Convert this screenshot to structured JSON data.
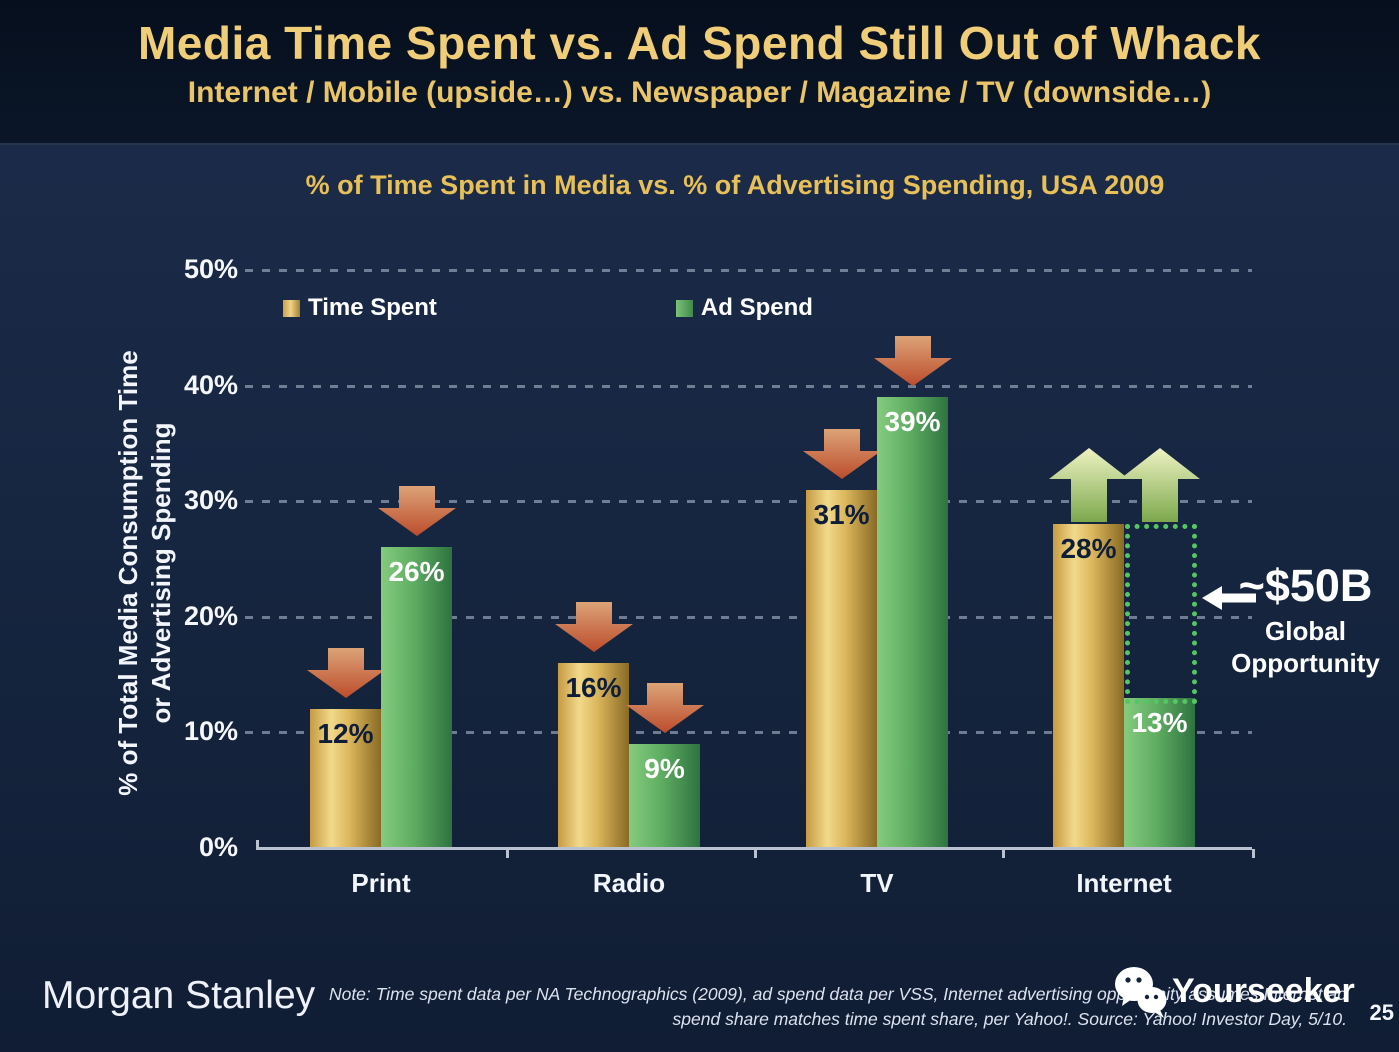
{
  "slide": {
    "title": "Media Time Spent vs. Ad Spend Still Out of Whack",
    "subtitle": "Internet / Mobile (upside…) vs. Newspaper / Magazine / TV (downside…)",
    "page_number": "25"
  },
  "chart_data": {
    "type": "bar",
    "title": "% of Time Spent in Media vs. % of Advertising Spending, USA 2009",
    "ylabel_line1": "% of Total Media Consumption Time",
    "ylabel_line2": "or Advertising Spending",
    "categories": [
      "Print",
      "Radio",
      "TV",
      "Internet"
    ],
    "series": [
      {
        "name": "Time Spent",
        "color_key": "gold",
        "values": [
          12,
          16,
          31,
          28
        ],
        "trend": [
          "down",
          "down",
          "down",
          "up"
        ]
      },
      {
        "name": "Ad Spend",
        "color_key": "green",
        "values": [
          26,
          9,
          39,
          13
        ],
        "trend": [
          "down",
          "down",
          "down",
          "up"
        ]
      }
    ],
    "value_suffix": "%",
    "ylim": [
      0,
      50
    ],
    "yticks": [
      "0%",
      "10%",
      "20%",
      "30%",
      "40%",
      "50%"
    ],
    "grid": true,
    "legend_position": "top-left",
    "annotation": {
      "value": "~$50B",
      "label_line1": "Global",
      "label_line2": "Opportunity",
      "gap_category": "Internet",
      "gap_from_value": 13,
      "gap_to_value": 28
    }
  },
  "footer": {
    "logo": "Morgan Stanley",
    "note_line1": "Note: Time spent data per NA Technographics (2009), ad spend data per VSS, Internet advertising opportunity assumes Internet ad",
    "note_line2": "spend share matches time spent share, per Yahoo!. Source: Yahoo! Investor Day, 5/10.",
    "watermark": "Yourseeker"
  },
  "colors": {
    "background_body": "#16253f",
    "background_header": "#0a1626",
    "title_gold": "#f0cd78",
    "bar_gold": "#d9b45a",
    "bar_green": "#5fae62",
    "down_arrow": "#c25433",
    "up_arrow": "#a9c56b",
    "gap_dotted": "#54c763",
    "text_white": "#ffffff"
  }
}
